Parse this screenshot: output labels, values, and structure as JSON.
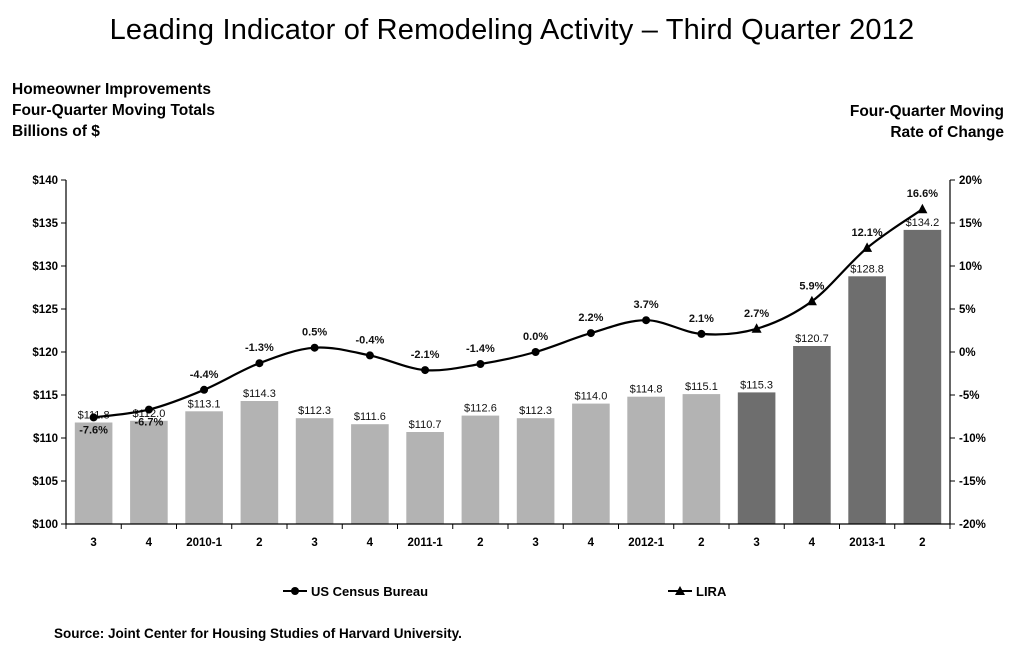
{
  "title": "Leading Indicator of Remodeling Activity – Third Quarter 2012",
  "left_axis_title": [
    "Homeowner Improvements",
    "Four-Quarter Moving Totals",
    "Billions of $"
  ],
  "right_axis_title": [
    "Four-Quarter Moving",
    "Rate of Change"
  ],
  "source": "Source: Joint Center for Housing Studies of Harvard University.",
  "chart_data": {
    "type": "bar",
    "categories": [
      "3",
      "4",
      "2010-1",
      "2",
      "3",
      "4",
      "2011-1",
      "2",
      "3",
      "4",
      "2012-1",
      "2",
      "3",
      "4",
      "2013-1",
      "2"
    ],
    "bar_values": [
      111.8,
      112.0,
      113.1,
      114.3,
      112.3,
      111.6,
      110.7,
      112.6,
      112.3,
      114.0,
      114.8,
      115.1,
      115.3,
      120.7,
      128.8,
      134.2
    ],
    "bar_labels": [
      "$111.8",
      "$112.0",
      "$113.1",
      "$114.3",
      "$112.3",
      "$111.6",
      "$110.7",
      "$112.6",
      "$112.3",
      "$114.0",
      "$114.8",
      "$115.1",
      "$115.3",
      "$120.7",
      "$128.8",
      "$134.2"
    ],
    "bar_colors": [
      "#b3b3b3",
      "#b3b3b3",
      "#b3b3b3",
      "#b3b3b3",
      "#b3b3b3",
      "#b3b3b3",
      "#b3b3b3",
      "#b3b3b3",
      "#b3b3b3",
      "#b3b3b3",
      "#b3b3b3",
      "#b3b3b3",
      "#6e6e6e",
      "#6e6e6e",
      "#6e6e6e",
      "#6e6e6e"
    ],
    "rate_values": [
      -7.6,
      -6.7,
      -4.4,
      -1.3,
      0.5,
      -0.4,
      -2.1,
      -1.4,
      0.0,
      2.2,
      3.7,
      2.1,
      2.7,
      5.9,
      12.1,
      16.6
    ],
    "rate_labels": [
      "-7.6%",
      "-6.7%",
      "-4.4%",
      "-1.3%",
      "0.5%",
      "-0.4%",
      "-2.1%",
      "-1.4%",
      "0.0%",
      "2.2%",
      "3.7%",
      "2.1%",
      "2.7%",
      "5.9%",
      "12.1%",
      "16.6%"
    ],
    "left_ylim": [
      100,
      140
    ],
    "left_ticks": [
      "$100",
      "$105",
      "$110",
      "$115",
      "$120",
      "$125",
      "$130",
      "$135",
      "$140"
    ],
    "right_ylim": [
      -20,
      20
    ],
    "right_ticks": [
      "-20%",
      "-15%",
      "-10%",
      "-5%",
      "0%",
      "5%",
      "10%",
      "15%",
      "20%"
    ],
    "series": [
      {
        "name": "US Census Bureau",
        "marker": "circle",
        "points": 12
      },
      {
        "name": "LIRA",
        "marker": "triangle",
        "points": 4
      }
    ],
    "legend_position": "bottom",
    "grid": false
  }
}
